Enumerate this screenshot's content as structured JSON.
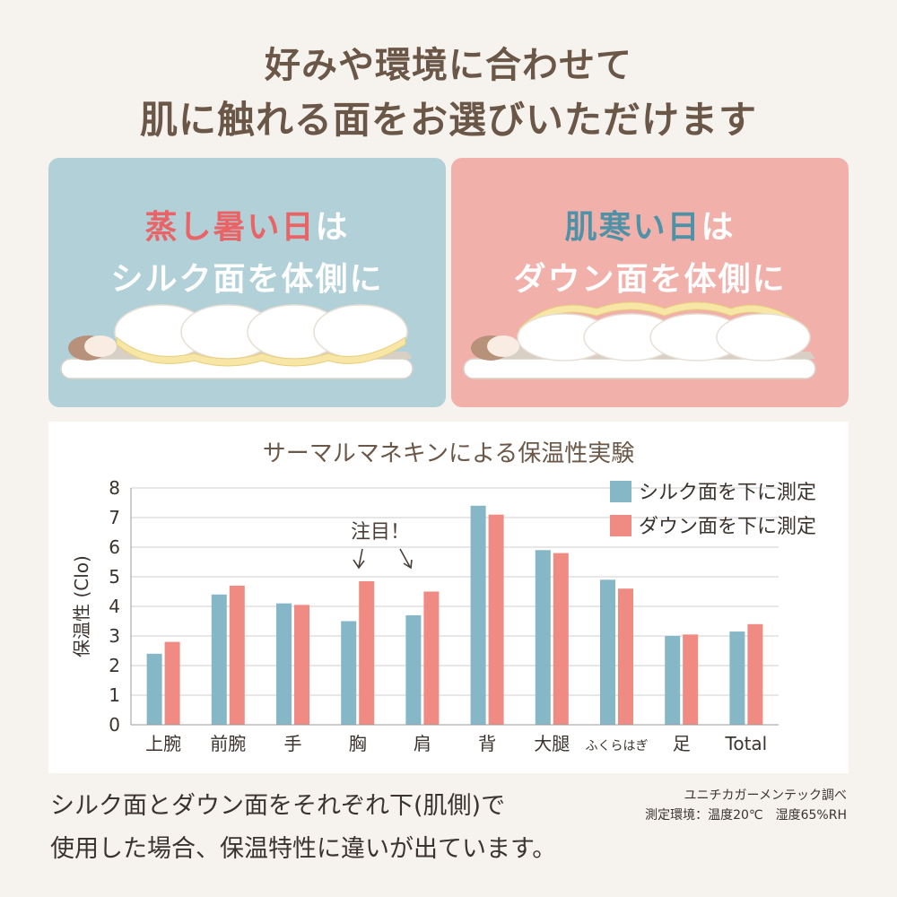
{
  "headline": {
    "line1": "好みや環境に合わせて",
    "line2": "肌に触れる面をお選びいただけます"
  },
  "panels": [
    {
      "accent": "蒸し暑い日",
      "accent_suffix": "は",
      "line2": "シルク面を体側に",
      "accent_color": "#e96466"
    },
    {
      "accent": "肌寒い日",
      "accent_suffix": "は",
      "line2": "ダウン面を体側に",
      "accent_color": "#4e92a7"
    }
  ],
  "chart_data": {
    "type": "bar",
    "title": "サーマルマネキンによる保温性実験",
    "ylabel": "保温性 (Clo)",
    "xlabel": "",
    "ylim": [
      0,
      8
    ],
    "yticks": [
      "0",
      "1",
      "2",
      "3",
      "4",
      "5",
      "6",
      "7",
      "8"
    ],
    "grid": true,
    "legend_position": "top-right",
    "categories": [
      "上腕",
      "前腕",
      "手",
      "胸",
      "肩",
      "背",
      "大腿",
      "ふくらはぎ",
      "足",
      "Total"
    ],
    "series": [
      {
        "name": "シルク面を下に測定",
        "color": "#86b7c6",
        "values": [
          2.4,
          4.4,
          4.1,
          3.5,
          3.7,
          7.4,
          5.9,
          4.9,
          3.0,
          3.15
        ]
      },
      {
        "name": "ダウン面を下に測定",
        "color": "#ef8b82",
        "values": [
          2.8,
          4.7,
          4.05,
          4.85,
          4.5,
          7.1,
          5.8,
          4.6,
          3.05,
          3.4
        ]
      }
    ],
    "annotation": {
      "text": "注目！"
    }
  },
  "footer": {
    "line1": "シルク面とダウン面をそれぞれ下(肌側)で",
    "line2": "使用した場合、保温特性に違いが出ています。",
    "credit1": "ユニチカガーメンテック調べ",
    "credit2": "測定環境：温度20℃　湿度65%RH"
  }
}
